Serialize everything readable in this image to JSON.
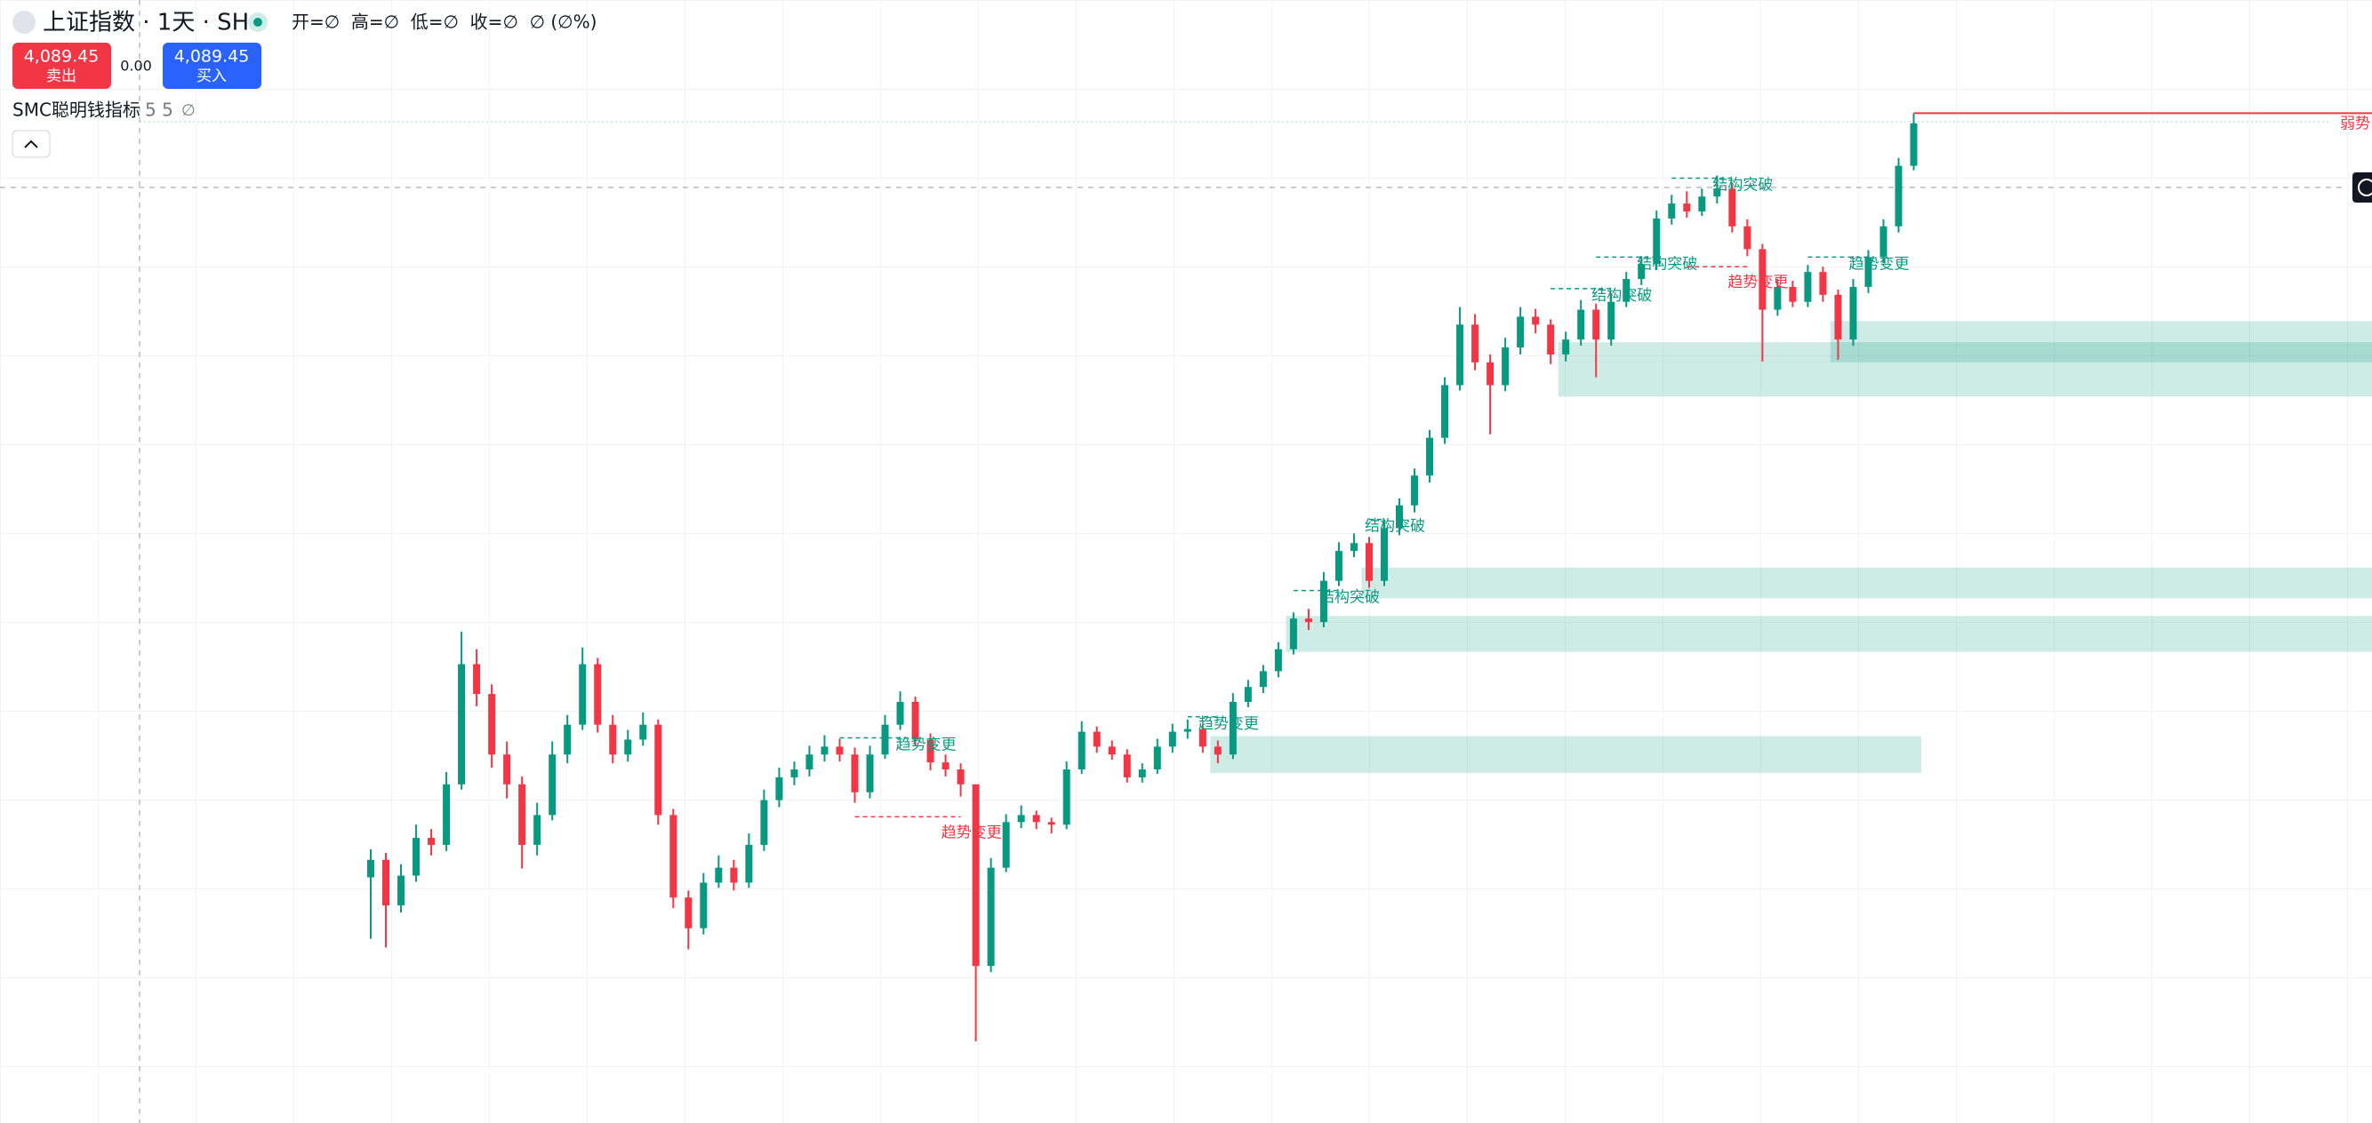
{
  "header": {
    "symbol": "上证指数 · 1天 · SH",
    "ohlc_text": "开=∅  高=∅  低=∅  收=∅  ∅ (∅%)",
    "sell": {
      "price": "4,089.45",
      "label": "卖出"
    },
    "spread": "0.00",
    "buy": {
      "price": "4,089.45",
      "label": "买入"
    },
    "indicator": {
      "name": "SMC聪明钱指标",
      "params": "5 5",
      "value": "∅"
    }
  },
  "chart_data": {
    "type": "candlestick",
    "up_color": "#089981",
    "down_color": "#f23645",
    "ylim": [
      2950,
      4230
    ],
    "zone_color": "rgba(8,153,129,0.2)",
    "ohlc": [
      [
        3230,
        3262,
        3160,
        3250
      ],
      [
        3250,
        3258,
        3150,
        3198
      ],
      [
        3198,
        3245,
        3190,
        3232
      ],
      [
        3232,
        3290,
        3225,
        3275
      ],
      [
        3275,
        3285,
        3255,
        3267
      ],
      [
        3267,
        3350,
        3260,
        3336
      ],
      [
        3336,
        3510,
        3330,
        3473
      ],
      [
        3473,
        3490,
        3425,
        3439
      ],
      [
        3439,
        3450,
        3355,
        3370
      ],
      [
        3370,
        3385,
        3320,
        3336
      ],
      [
        3336,
        3345,
        3240,
        3267
      ],
      [
        3267,
        3315,
        3255,
        3301
      ],
      [
        3301,
        3385,
        3295,
        3370
      ],
      [
        3370,
        3415,
        3360,
        3404
      ],
      [
        3404,
        3492,
        3398,
        3473
      ],
      [
        3473,
        3480,
        3395,
        3404
      ],
      [
        3404,
        3415,
        3360,
        3370
      ],
      [
        3370,
        3398,
        3362,
        3387
      ],
      [
        3387,
        3418,
        3380,
        3404
      ],
      [
        3404,
        3410,
        3290,
        3301
      ],
      [
        3301,
        3308,
        3195,
        3207
      ],
      [
        3207,
        3215,
        3148,
        3172
      ],
      [
        3172,
        3235,
        3165,
        3224
      ],
      [
        3224,
        3255,
        3218,
        3241
      ],
      [
        3241,
        3250,
        3215,
        3224
      ],
      [
        3224,
        3280,
        3218,
        3267
      ],
      [
        3267,
        3330,
        3260,
        3318
      ],
      [
        3318,
        3355,
        3310,
        3344
      ],
      [
        3344,
        3362,
        3335,
        3353
      ],
      [
        3353,
        3380,
        3345,
        3370
      ],
      [
        3370,
        3392,
        3362,
        3379
      ],
      [
        3379,
        3388,
        3362,
        3370
      ],
      [
        3370,
        3378,
        3315,
        3327
      ],
      [
        3327,
        3380,
        3320,
        3370
      ],
      [
        3370,
        3415,
        3365,
        3404
      ],
      [
        3404,
        3442,
        3398,
        3430
      ],
      [
        3430,
        3436,
        3380,
        3387
      ],
      [
        3387,
        3394,
        3352,
        3361
      ],
      [
        3361,
        3370,
        3345,
        3353
      ],
      [
        3353,
        3360,
        3322,
        3336
      ],
      [
        3336,
        3336,
        3043,
        3129
      ],
      [
        3129,
        3252,
        3122,
        3241
      ],
      [
        3241,
        3302,
        3236,
        3293
      ],
      [
        3293,
        3312,
        3286,
        3301
      ],
      [
        3301,
        3306,
        3285,
        3293
      ],
      [
        3293,
        3298,
        3280,
        3290
      ],
      [
        3290,
        3362,
        3285,
        3353
      ],
      [
        3353,
        3408,
        3348,
        3396
      ],
      [
        3396,
        3402,
        3372,
        3379
      ],
      [
        3379,
        3386,
        3364,
        3370
      ],
      [
        3370,
        3376,
        3338,
        3344
      ],
      [
        3344,
        3360,
        3338,
        3353
      ],
      [
        3353,
        3388,
        3348,
        3379
      ],
      [
        3379,
        3405,
        3372,
        3396
      ],
      [
        3396,
        3410,
        3388,
        3399
      ],
      [
        3399,
        3404,
        3372,
        3379
      ],
      [
        3379,
        3386,
        3360,
        3370
      ],
      [
        3370,
        3440,
        3365,
        3430
      ],
      [
        3430,
        3455,
        3424,
        3447
      ],
      [
        3447,
        3472,
        3440,
        3465
      ],
      [
        3465,
        3498,
        3458,
        3490
      ],
      [
        3490,
        3532,
        3484,
        3525
      ],
      [
        3525,
        3536,
        3512,
        3521
      ],
      [
        3521,
        3578,
        3515,
        3568
      ],
      [
        3568,
        3612,
        3562,
        3602
      ],
      [
        3602,
        3622,
        3595,
        3611
      ],
      [
        3611,
        3618,
        3560,
        3568
      ],
      [
        3568,
        3638,
        3562,
        3628
      ],
      [
        3628,
        3662,
        3620,
        3654
      ],
      [
        3654,
        3696,
        3646,
        3688
      ],
      [
        3688,
        3740,
        3680,
        3731
      ],
      [
        3731,
        3800,
        3724,
        3791
      ],
      [
        3791,
        3880,
        3785,
        3860
      ],
      [
        3860,
        3872,
        3808,
        3817
      ],
      [
        3817,
        3826,
        3735,
        3791
      ],
      [
        3791,
        3845,
        3784,
        3834
      ],
      [
        3834,
        3880,
        3826,
        3869
      ],
      [
        3869,
        3878,
        3850,
        3860
      ],
      [
        3860,
        3866,
        3815,
        3826
      ],
      [
        3826,
        3852,
        3818,
        3843
      ],
      [
        3843,
        3888,
        3836,
        3877
      ],
      [
        3877,
        3884,
        3800,
        3843
      ],
      [
        3843,
        3895,
        3836,
        3886
      ],
      [
        3886,
        3920,
        3880,
        3912
      ],
      [
        3912,
        3938,
        3905,
        3929
      ],
      [
        3929,
        3990,
        3922,
        3981
      ],
      [
        3981,
        4008,
        3974,
        3998
      ],
      [
        3998,
        4012,
        3982,
        3989
      ],
      [
        3989,
        4015,
        3984,
        4006
      ],
      [
        4006,
        4030,
        3998,
        4015
      ],
      [
        4015,
        4020,
        3965,
        3972
      ],
      [
        3972,
        3980,
        3938,
        3946
      ],
      [
        3946,
        3952,
        3818,
        3877
      ],
      [
        3877,
        3912,
        3870,
        3903
      ],
      [
        3903,
        3910,
        3880,
        3886
      ],
      [
        3886,
        3928,
        3880,
        3920
      ],
      [
        3920,
        3926,
        3886,
        3894
      ],
      [
        3894,
        3900,
        3820,
        3843
      ],
      [
        3843,
        3912,
        3836,
        3903
      ],
      [
        3903,
        3945,
        3896,
        3937
      ],
      [
        3937,
        3980,
        3930,
        3972
      ],
      [
        3972,
        4050,
        3965,
        4041
      ],
      [
        4041,
        4101,
        4036,
        4089.45
      ]
    ],
    "zones": [
      {
        "start": 56,
        "end": 102,
        "top": 3391,
        "bottom": 3349
      },
      {
        "start": 61,
        "top": 3528,
        "bottom": 3487
      },
      {
        "start": 66,
        "top": 3583,
        "bottom": 3548
      },
      {
        "start": 79,
        "top": 3840,
        "bottom": 3778
      },
      {
        "start": 97,
        "top": 3864,
        "bottom": 3817
      }
    ],
    "structures": [
      {
        "label": "趋势变更",
        "level": 3389,
        "start": 31,
        "end": 36,
        "color": "#089981"
      },
      {
        "label": "趋势变更",
        "level": 3299,
        "start": 32,
        "end": 39,
        "color": "#f23645"
      },
      {
        "label": "趋势变更",
        "level": 3413,
        "start": 54,
        "end": 56,
        "color": "#089981"
      },
      {
        "label": "结构突破",
        "level": 3557,
        "start": 61,
        "end": 64,
        "color": "#089981"
      },
      {
        "label": "结构突破",
        "level": 3638,
        "start": 66,
        "end": 67,
        "color": "#089981"
      },
      {
        "label": "结构突破",
        "level": 3901,
        "start": 78,
        "end": 82,
        "color": "#089981"
      },
      {
        "label": "结构突破",
        "level": 3937,
        "start": 81,
        "end": 85,
        "color": "#089981"
      },
      {
        "label": "结构突破",
        "level": 4027,
        "start": 86,
        "end": 90,
        "color": "#089981"
      },
      {
        "label": "趋势变更",
        "level": 3926,
        "start": 87,
        "end": 91,
        "color": "#f23645"
      },
      {
        "label": "趋势变更",
        "level": 3937,
        "start": 95,
        "end": 99,
        "color": "#089981"
      }
    ],
    "weak_high": {
      "label": "弱势",
      "level": 4101,
      "start": 102,
      "color": "#f23645"
    }
  }
}
